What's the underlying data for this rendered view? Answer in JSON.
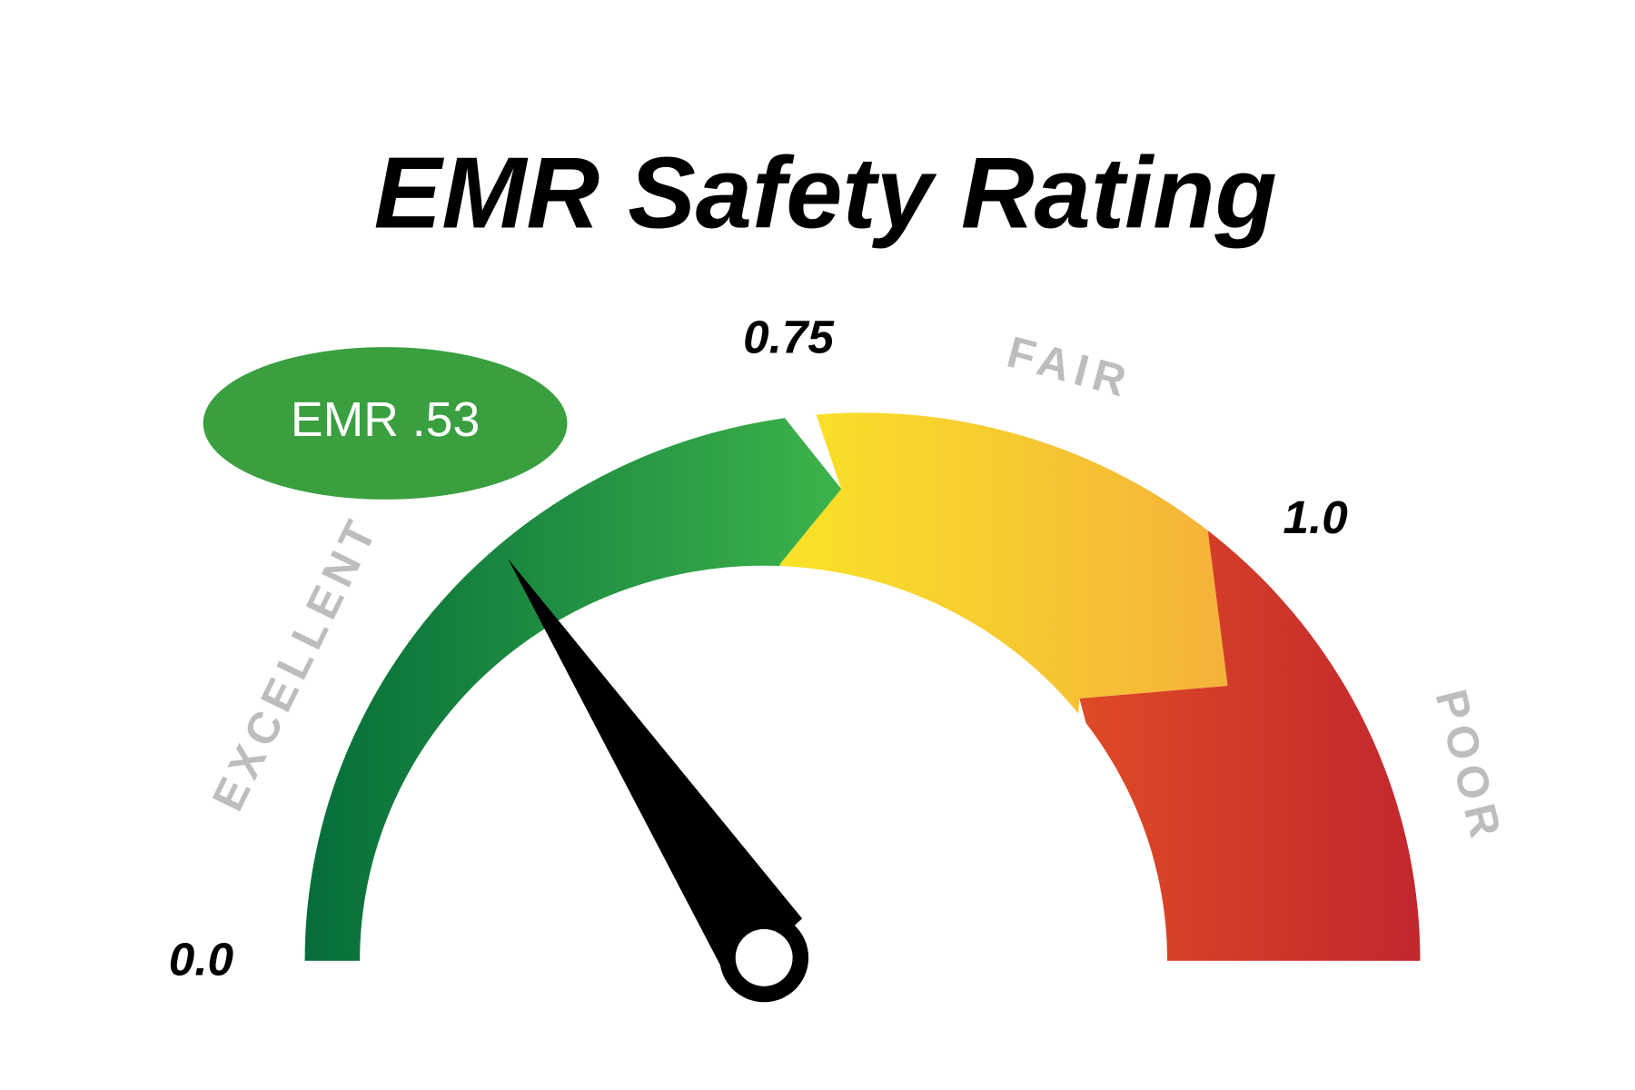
{
  "header": {
    "title": "EMR Safety Rating"
  },
  "badge": {
    "label": "EMR .53"
  },
  "gauge": {
    "scale_labels": [
      "0.0",
      "0.75",
      "1.0"
    ],
    "zones": [
      "EXCELLENT",
      "FAIR",
      "POOR"
    ]
  }
}
